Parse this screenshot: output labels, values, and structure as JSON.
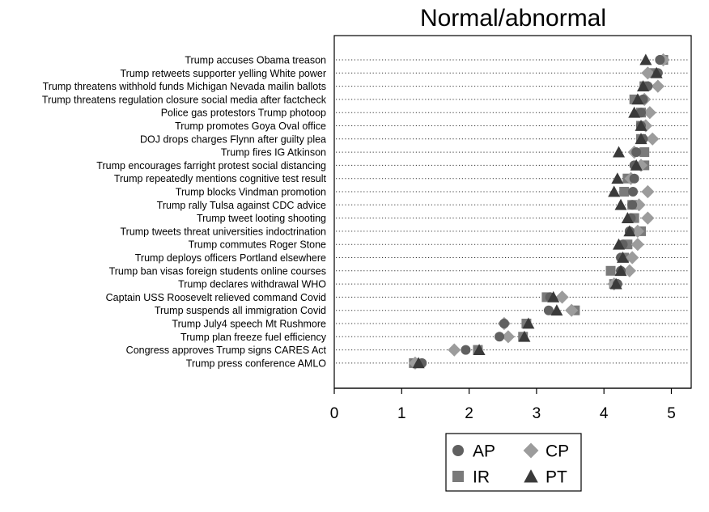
{
  "chart_data": {
    "type": "scatter",
    "title": "Normal/abnormal",
    "xlim": [
      0,
      5.3
    ],
    "xticks": [
      "0",
      "1",
      "2",
      "3",
      "4",
      "5"
    ],
    "grid": "dotted horizontal guide lines per category",
    "legend_position": "bottom-center",
    "categories": [
      "Trump accuses Obama treason",
      "Trump retweets supporter yelling White power",
      "Trump threatens withhold funds Michigan Nevada mailin ballots",
      "Trump threatens regulation closure social media after factcheck",
      "Police gas protestors Trump photoop",
      "Trump promotes Goya Oval office",
      "DOJ drops charges Flynn after guilty plea",
      "Trump fires IG Atkinson",
      "Trump encourages farright protest social distancing",
      "Trump repeatedly mentions cognitive test result",
      "Trump blocks Vindman promotion ",
      "Trump rally Tulsa against CDC advice",
      "Trump tweet looting shooting",
      "Trump tweets threat universities indoctrination",
      "Trump commutes Roger Stone ",
      "Trump deploys officers Portland elsewhere",
      "Trump ban visas foreign students online courses",
      "Trump declares withdrawal WHO",
      "Captain USS Roosevelt relieved command Covid",
      "Trump suspends all immigration Covid",
      "Trump July4 speech Mt Rushmore",
      "Trump plan freeze fuel efficiency",
      "Congress approves Trump signs CARES Act",
      "Trump press conference AMLO"
    ],
    "series": [
      {
        "name": "AP",
        "marker": "circle",
        "color": "#606060",
        "values": [
          4.83,
          4.8,
          4.65,
          4.58,
          4.55,
          4.55,
          4.58,
          4.48,
          4.45,
          4.45,
          4.43,
          4.42,
          4.4,
          4.38,
          4.28,
          4.25,
          4.25,
          4.2,
          3.2,
          3.18,
          2.52,
          2.45,
          1.95,
          1.3
        ]
      },
      {
        "name": "IR",
        "marker": "square",
        "color": "#7a7a7a",
        "values": [
          4.88,
          4.7,
          4.6,
          4.45,
          4.55,
          4.55,
          4.55,
          4.6,
          4.6,
          4.35,
          4.3,
          4.42,
          4.45,
          4.55,
          4.35,
          4.3,
          4.1,
          4.15,
          3.15,
          3.57,
          2.85,
          2.8,
          2.13,
          1.18
        ]
      },
      {
        "name": "CP",
        "marker": "diamond",
        "color": "#9c9c9c",
        "values": [
          4.88,
          4.65,
          4.8,
          4.6,
          4.68,
          4.62,
          4.72,
          4.45,
          4.55,
          4.4,
          4.65,
          4.52,
          4.65,
          4.5,
          4.5,
          4.42,
          4.38,
          4.15,
          3.38,
          3.52,
          2.52,
          2.58,
          1.78,
          1.2
        ]
      },
      {
        "name": "PT",
        "marker": "triangle",
        "color": "#3a3a3a",
        "values": [
          4.62,
          4.78,
          4.58,
          4.5,
          4.45,
          4.55,
          4.55,
          4.22,
          4.48,
          4.2,
          4.15,
          4.25,
          4.35,
          4.38,
          4.22,
          4.28,
          4.25,
          4.18,
          3.25,
          3.3,
          2.88,
          2.82,
          2.15,
          1.25
        ]
      }
    ]
  }
}
